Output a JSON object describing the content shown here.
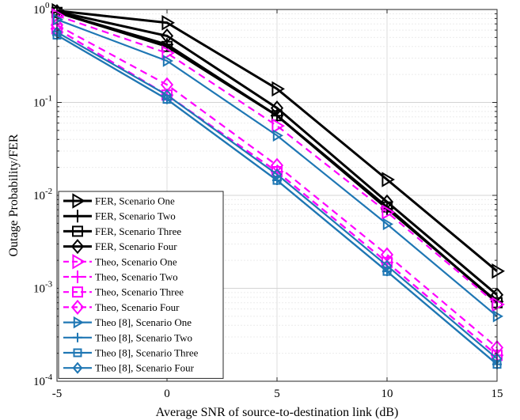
{
  "chart_data": {
    "type": "line",
    "xlabel": "Average SNR of source-to-destination link (dB)",
    "ylabel": "Outage Probability/FER",
    "x": [
      -5,
      0,
      5,
      10,
      15
    ],
    "xlim": [
      -5,
      15
    ],
    "ylim": [
      0.0001,
      1
    ],
    "yscale": "log",
    "grid": true,
    "legend_position": "bottom-left",
    "xticks": [
      "-5",
      "0",
      "5",
      "10",
      "15"
    ],
    "yticks": [
      {
        "base": "10",
        "exp": "-4"
      },
      {
        "base": "10",
        "exp": "-3"
      },
      {
        "base": "10",
        "exp": "-2"
      },
      {
        "base": "10",
        "exp": "-1"
      },
      {
        "base": "10",
        "exp": "0"
      }
    ],
    "series": [
      {
        "name": "FER, Scenario One",
        "color": "#000000",
        "style": "solid",
        "marker": "triangle-right",
        "values": [
          0.97,
          0.72,
          0.14,
          0.0148,
          0.00153
        ]
      },
      {
        "name": "FER, Scenario Two",
        "color": "#000000",
        "style": "solid",
        "marker": "plus",
        "values": [
          0.93,
          0.42,
          0.072,
          0.0072,
          0.00072
        ]
      },
      {
        "name": "FER, Scenario Three",
        "color": "#000000",
        "style": "solid",
        "marker": "square",
        "values": [
          0.93,
          0.4,
          0.072,
          0.0075,
          0.0007
        ]
      },
      {
        "name": "FER, Scenario Four",
        "color": "#000000",
        "style": "solid",
        "marker": "diamond",
        "values": [
          0.95,
          0.52,
          0.087,
          0.0085,
          0.00085
        ]
      },
      {
        "name": "Theo, Scenario One",
        "color": "#ff00ff",
        "style": "dashed",
        "marker": "triangle-right",
        "values": [
          0.86,
          0.34,
          0.056,
          0.0066,
          0.00067
        ]
      },
      {
        "name": "Theo, Scenario Two",
        "color": "#ff00ff",
        "style": "dashed",
        "marker": "plus",
        "values": [
          0.62,
          0.12,
          0.018,
          0.0019,
          0.00019
        ]
      },
      {
        "name": "Theo, Scenario Three",
        "color": "#ff00ff",
        "style": "dashed",
        "marker": "square",
        "values": [
          0.62,
          0.12,
          0.018,
          0.0019,
          0.00019
        ]
      },
      {
        "name": "Theo, Scenario Four",
        "color": "#ff00ff",
        "style": "dashed",
        "marker": "diamond",
        "values": [
          0.68,
          0.155,
          0.021,
          0.0023,
          0.00023
        ]
      },
      {
        "name": "Theo [8], Scenario One",
        "color": "#1f77b4",
        "style": "solid",
        "marker": "triangle-right",
        "values": [
          0.78,
          0.28,
          0.044,
          0.0049,
          0.0005
        ]
      },
      {
        "name": "Theo [8], Scenario Two",
        "color": "#1f77b4",
        "style": "solid",
        "marker": "plus",
        "values": [
          0.53,
          0.108,
          0.0145,
          0.00152,
          0.000152
        ]
      },
      {
        "name": "Theo [8], Scenario Three",
        "color": "#1f77b4",
        "style": "solid",
        "marker": "square",
        "values": [
          0.53,
          0.108,
          0.0145,
          0.00152,
          0.000152
        ]
      },
      {
        "name": "Theo [8], Scenario Four",
        "color": "#1f77b4",
        "style": "solid",
        "marker": "diamond",
        "values": [
          0.57,
          0.12,
          0.0168,
          0.00175,
          0.000175
        ]
      }
    ]
  }
}
